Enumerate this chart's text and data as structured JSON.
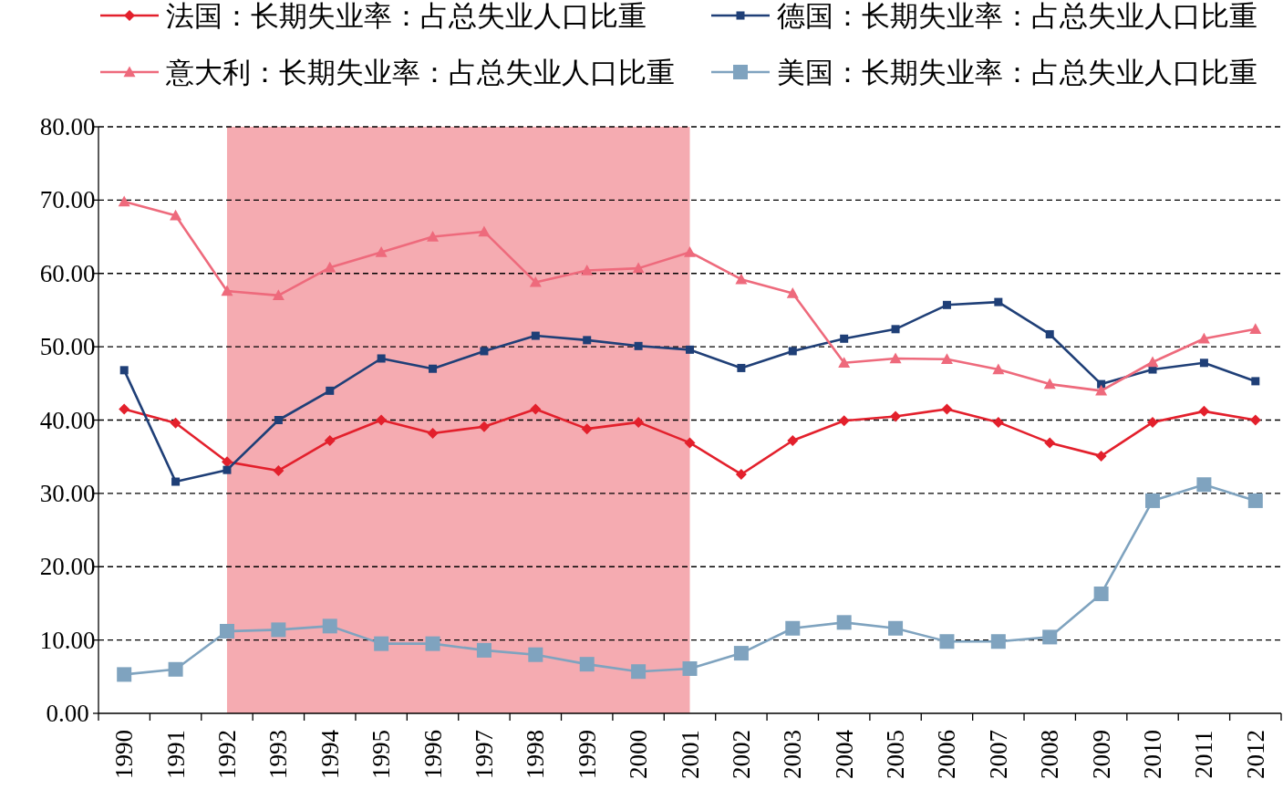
{
  "chart_data": {
    "type": "line",
    "categories": [
      "1990",
      "1991",
      "1992",
      "1993",
      "1994",
      "1995",
      "1996",
      "1997",
      "1998",
      "1999",
      "2000",
      "2001",
      "2002",
      "2003",
      "2004",
      "2005",
      "2006",
      "2007",
      "2008",
      "2009",
      "2010",
      "2011",
      "2012"
    ],
    "series": [
      {
        "name": "法国：长期失业率：占总失业人口比重",
        "color": "#e3202c",
        "marker": "diamond",
        "values": [
          41.5,
          39.6,
          34.3,
          33.1,
          37.2,
          40.0,
          38.2,
          39.1,
          41.5,
          38.8,
          39.7,
          36.9,
          32.6,
          37.2,
          39.9,
          40.5,
          41.5,
          39.7,
          36.9,
          35.1,
          39.7,
          41.2,
          40.0
        ]
      },
      {
        "name": "德国：长期失业率：占总失业人口比重",
        "color": "#1f3f77",
        "marker": "square",
        "values": [
          46.8,
          31.6,
          33.2,
          40.0,
          44.0,
          48.4,
          47.0,
          49.4,
          51.5,
          50.9,
          50.1,
          49.6,
          47.1,
          49.4,
          51.1,
          52.4,
          55.7,
          56.1,
          51.7,
          44.9,
          46.9,
          47.8,
          45.3
        ]
      },
      {
        "name": "意大利：长期失业率：占总失业人口比重",
        "color": "#ee6a7c",
        "marker": "triangle",
        "values": [
          69.8,
          67.9,
          57.6,
          57.0,
          60.8,
          62.9,
          65.0,
          65.7,
          58.8,
          60.4,
          60.7,
          62.9,
          59.2,
          57.3,
          47.8,
          48.4,
          48.3,
          46.9,
          44.9,
          44.0,
          47.9,
          51.1,
          52.4
        ]
      },
      {
        "name": "美国：长期失业率：占总失业人口比重",
        "color": "#7fa3bf",
        "marker": "square",
        "values": [
          5.3,
          6.0,
          11.2,
          11.4,
          11.9,
          9.5,
          9.5,
          8.6,
          8.0,
          6.7,
          5.7,
          6.1,
          8.2,
          11.6,
          12.4,
          11.6,
          9.8,
          9.8,
          10.4,
          16.3,
          29.0,
          31.2,
          29.0
        ]
      }
    ],
    "ylim": [
      0,
      80
    ],
    "yticks": [
      {
        "value": 0,
        "label": "0.00"
      },
      {
        "value": 10,
        "label": "10.00"
      },
      {
        "value": 20,
        "label": "20.00"
      },
      {
        "value": 30,
        "label": "30.00"
      },
      {
        "value": 40,
        "label": "40.00"
      },
      {
        "value": 50,
        "label": "50.00"
      },
      {
        "value": 60,
        "label": "60.00"
      },
      {
        "value": 70,
        "label": "70.00"
      },
      {
        "value": 80,
        "label": "80.00"
      }
    ],
    "grid": "y",
    "legend": "top",
    "bands": [
      {
        "axis": "x",
        "from": "1992",
        "to": "2001",
        "color": "#f4a6ad"
      }
    ]
  }
}
